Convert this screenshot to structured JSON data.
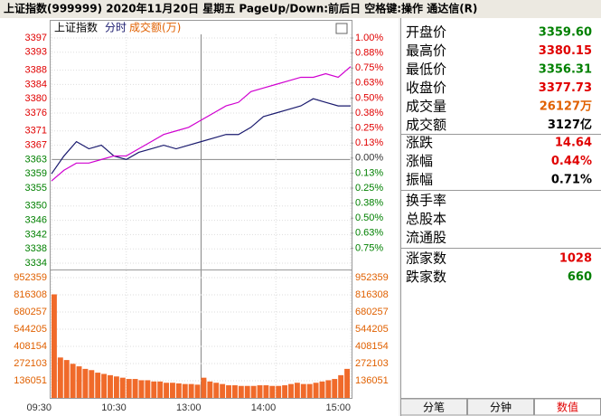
{
  "title_bar": "上证指数(999999)  2020年11月20日 星期五 PageUp/Down:前后日 空格键:操作 通达信(R)",
  "chart_data": [
    {
      "type": "line",
      "title": "上证指数",
      "mode": "分时",
      "x": [
        0,
        10,
        20,
        30,
        40,
        50,
        60,
        70,
        80,
        90,
        100,
        110,
        120,
        130,
        140,
        150,
        160,
        170,
        180,
        190,
        200,
        210,
        220,
        230,
        240
      ],
      "xlim": [
        0,
        240
      ],
      "xticks": [
        {
          "value": 0,
          "label": "09:30"
        },
        {
          "value": 60,
          "label": "10:30"
        },
        {
          "value": 120,
          "label": "13:00"
        },
        {
          "value": 180,
          "label": "14:00"
        },
        {
          "value": 240,
          "label": "15:00"
        }
      ],
      "ylim": [
        3334,
        3397
      ],
      "yticks": [
        3397,
        3393,
        3388,
        3384,
        3380,
        3376,
        3371,
        3367,
        3363,
        3359,
        3355,
        3350,
        3346,
        3342,
        3338,
        3334
      ],
      "y2lim": [
        -0.875,
        1.0
      ],
      "y2ticks": [
        {
          "value": 1.0,
          "label": "1.00%"
        },
        {
          "value": 0.875,
          "label": "0.88%"
        },
        {
          "value": 0.75,
          "label": "0.75%"
        },
        {
          "value": 0.625,
          "label": "0.63%"
        },
        {
          "value": 0.5,
          "label": "0.50%"
        },
        {
          "value": 0.375,
          "label": "0.38%"
        },
        {
          "value": 0.25,
          "label": "0.25%"
        },
        {
          "value": 0.125,
          "label": "0.13%"
        },
        {
          "value": 0,
          "label": "0.00%"
        },
        {
          "value": -0.125,
          "label": "0.13%"
        },
        {
          "value": -0.25,
          "label": "0.25%"
        },
        {
          "value": -0.375,
          "label": "0.38%"
        },
        {
          "value": -0.5,
          "label": "0.50%"
        },
        {
          "value": -0.625,
          "label": "0.63%"
        },
        {
          "value": -0.75,
          "label": "0.75%"
        }
      ],
      "up_color": "#e00000",
      "down_color": "#008000",
      "flat_color": "#333333",
      "grid": true,
      "series": [
        {
          "color": "#1a1a6e",
          "values": [
            3359,
            3364,
            3368,
            3366,
            3367,
            3364,
            3363,
            3365,
            3366,
            3367,
            3366,
            3367,
            3368,
            3369,
            3370,
            3370,
            3372,
            3375,
            3376,
            3377,
            3378,
            3380,
            3379,
            3378,
            3378
          ]
        },
        {
          "color": "#d000d0",
          "values": [
            3357,
            3360,
            3362,
            3362,
            3363,
            3364,
            3364,
            3366,
            3368,
            3370,
            3371,
            3372,
            3374,
            3376,
            3378,
            3379,
            3382,
            3383,
            3384,
            3385,
            3386,
            3386,
            3387,
            3386,
            3389
          ]
        }
      ]
    },
    {
      "type": "bar",
      "title": "成交额(万)",
      "x": [
        0,
        5,
        10,
        15,
        20,
        25,
        30,
        35,
        40,
        45,
        50,
        55,
        60,
        65,
        70,
        75,
        80,
        85,
        90,
        95,
        100,
        105,
        110,
        115,
        120,
        125,
        130,
        135,
        140,
        145,
        150,
        155,
        160,
        165,
        170,
        175,
        180,
        185,
        190,
        195,
        200,
        205,
        210,
        215,
        220,
        225,
        230,
        235
      ],
      "xlim": [
        0,
        240
      ],
      "values": [
        820000,
        320000,
        300000,
        270000,
        250000,
        230000,
        220000,
        200000,
        190000,
        180000,
        170000,
        160000,
        150000,
        150000,
        140000,
        140000,
        130000,
        130000,
        120000,
        120000,
        115000,
        110000,
        110000,
        105000,
        160000,
        130000,
        120000,
        110000,
        100000,
        100000,
        95000,
        95000,
        95000,
        100000,
        100000,
        95000,
        95000,
        100000,
        110000,
        120000,
        110000,
        110000,
        120000,
        130000,
        140000,
        150000,
        180000,
        230000
      ],
      "color": "#f06a2a",
      "ylim": [
        0,
        952359
      ],
      "yticks": [
        136051,
        272103,
        408154,
        544205,
        680257,
        816308,
        952359
      ]
    }
  ],
  "panel": {
    "groups": [
      [
        {
          "label": "开盘价",
          "value": "3359.60",
          "color": "#008000"
        },
        {
          "label": "最高价",
          "value": "3380.15",
          "color": "#e00000"
        },
        {
          "label": "最低价",
          "value": "3356.31",
          "color": "#008000"
        },
        {
          "label": "收盘价",
          "value": "3377.73",
          "color": "#e00000"
        },
        {
          "label": "成交量",
          "value": "26127万",
          "color": "#e06000"
        },
        {
          "label": "成交额",
          "value": "3127亿",
          "color": "#000000"
        }
      ],
      [
        {
          "label": "涨跌",
          "value": "14.64",
          "color": "#e00000"
        },
        {
          "label": "涨幅",
          "value": "0.44%",
          "color": "#e00000"
        },
        {
          "label": "振幅",
          "value": "0.71%",
          "color": "#000000"
        }
      ],
      [
        {
          "label": "换手率"
        },
        {
          "label": "总股本"
        },
        {
          "label": "流通股"
        }
      ],
      [
        {
          "label": "涨家数",
          "value": "1028",
          "color": "#e00000"
        },
        {
          "label": "跌家数",
          "value": "660",
          "color": "#008000"
        }
      ]
    ]
  },
  "tabs": [
    "分笔",
    "分钟",
    "数值"
  ],
  "active_tab": 2
}
